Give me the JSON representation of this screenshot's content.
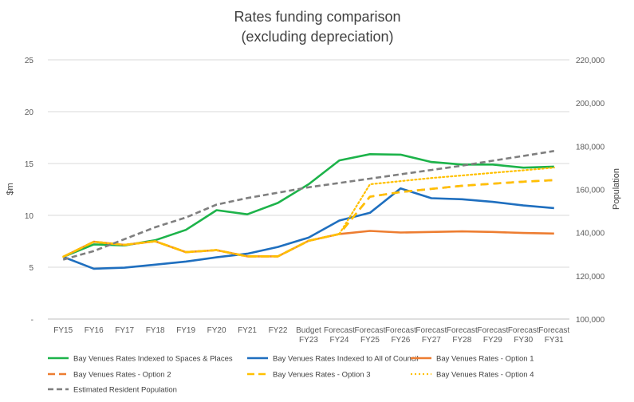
{
  "chart_data": {
    "type": "line",
    "title": "Rates funding comparison",
    "subtitle": "(excluding depreciation)",
    "ylabel": "$m",
    "y2label": "Population",
    "categories": [
      [
        "FY15"
      ],
      [
        "FY16"
      ],
      [
        "FY17"
      ],
      [
        "FY18"
      ],
      [
        "FY19"
      ],
      [
        "FY20"
      ],
      [
        "FY21"
      ],
      [
        "FY22"
      ],
      [
        "Budget",
        "FY23"
      ],
      [
        "Forecast",
        "FY24"
      ],
      [
        "Forecast",
        "FY25"
      ],
      [
        "Forecast",
        "FY26"
      ],
      [
        "Forecast",
        "FY27"
      ],
      [
        "Forecast",
        "FY28"
      ],
      [
        "Forecast",
        "FY29"
      ],
      [
        "Forecast",
        "FY30"
      ],
      [
        "Forecast",
        "FY31"
      ]
    ],
    "ylim": [
      0,
      25
    ],
    "y_ticks": [
      "-",
      "5",
      "10",
      "15",
      "20",
      "25"
    ],
    "y2lim": [
      100000,
      220000
    ],
    "y2_ticks": [
      "100,000",
      "120,000",
      "140,000",
      "160,000",
      "180,000",
      "200,000",
      "220,000"
    ],
    "grid": "horizontal",
    "legend_position": "bottom",
    "series": [
      {
        "name": "Bay Venues Rates Indexed to Spaces & Places",
        "color": "#1db34a",
        "dash": "solid",
        "axis": "left",
        "values": [
          6.0,
          7.2,
          7.1,
          7.6,
          8.6,
          10.5,
          10.1,
          11.2,
          13.0,
          15.3,
          15.9,
          15.85,
          15.15,
          14.9,
          14.9,
          14.6,
          14.7
        ]
      },
      {
        "name": "Bay Venues Rates Indexed to All of Council",
        "color": "#1f6fbf",
        "dash": "solid",
        "axis": "left",
        "values": [
          6.0,
          4.85,
          4.95,
          5.25,
          5.55,
          5.95,
          6.3,
          6.95,
          7.85,
          9.5,
          10.25,
          12.6,
          11.65,
          11.55,
          11.3,
          10.95,
          10.7
        ]
      },
      {
        "name": "Bay Venues Rates - Option 1",
        "color": "#ed7d31",
        "dash": "solid",
        "axis": "left",
        "values": [
          6.0,
          7.45,
          7.15,
          7.5,
          6.45,
          6.65,
          6.05,
          6.05,
          7.55,
          8.2,
          8.5,
          8.35,
          8.4,
          8.45,
          8.4,
          8.3,
          8.25
        ]
      },
      {
        "name": "Bay Venues Rates - Option 2",
        "color": "#ed7d31",
        "dash": "dash",
        "axis": "left",
        "values": [
          6.0,
          7.45,
          7.15,
          7.5,
          6.45,
          6.65,
          6.05,
          6.05,
          7.55,
          8.2,
          11.8,
          12.25,
          12.55,
          12.85,
          13.05,
          13.25,
          13.4
        ]
      },
      {
        "name": "Bay Venues Rates - Option 3",
        "color": "#ffc000",
        "dash": "dash",
        "axis": "left",
        "values": [
          6.0,
          7.45,
          7.15,
          7.5,
          6.45,
          6.65,
          6.05,
          6.05,
          7.55,
          8.2,
          11.8,
          12.25,
          12.55,
          12.85,
          13.05,
          13.25,
          13.4
        ]
      },
      {
        "name": "Bay Venues Rates - Option 4",
        "color": "#ffc000",
        "dash": "dot",
        "axis": "left",
        "values": [
          6.0,
          7.45,
          7.15,
          7.5,
          6.45,
          6.65,
          6.05,
          6.05,
          7.55,
          8.2,
          13.0,
          13.3,
          13.6,
          13.85,
          14.1,
          14.35,
          14.6
        ]
      },
      {
        "name": "Estimated Resident Population",
        "color": "#7f7f7f",
        "dash": "dash-heavy",
        "axis": "right",
        "values": [
          127500,
          131500,
          137000,
          142500,
          147000,
          153000,
          156000,
          158500,
          161000,
          163000,
          165000,
          167000,
          169000,
          171000,
          173300,
          175500,
          177800
        ]
      }
    ]
  }
}
